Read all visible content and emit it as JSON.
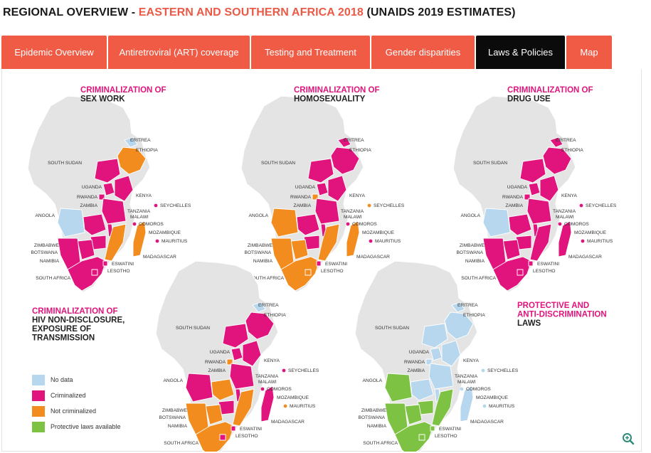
{
  "page_title": {
    "part1": "REGIONAL OVERVIEW - ",
    "part2": "EASTERN AND SOUTHERN AFRICA 2018",
    "part3": " (UNAIDS 2019 ESTIMATES)"
  },
  "tabs": [
    {
      "label": "Epidemic Overview",
      "active": false
    },
    {
      "label": "Antiretroviral (ART) coverage",
      "active": false
    },
    {
      "label": "Testing and Treatment",
      "active": false
    },
    {
      "label": "Gender disparities",
      "active": false
    },
    {
      "label": "Laws & Policies",
      "active": true
    },
    {
      "label": "Map",
      "active": false
    }
  ],
  "colors": {
    "no_data": "#b7d7ef",
    "criminalized": "#e0147c",
    "not_criminalized": "#f28c1e",
    "protective": "#7dc242",
    "land": "#e4e4e4",
    "tab": "#ef5b45",
    "tab_active": "#0b0b0b",
    "title_accent": "#ea5a47"
  },
  "maps": [
    {
      "id": "sex-work",
      "title_lines": [
        "CRIMINALIZATION OF",
        "SEX WORK"
      ],
      "labels": [
        "ERITREA",
        "ETHIOPIA",
        "SOUTH SUDAN",
        "UGANDA",
        "KENYA",
        "RWANDA",
        "SEYCHELLES",
        "ZAMBIA",
        "TANZANIA",
        "MALAWI",
        "ANGOLA",
        "COMOROS",
        "MOZAMBIQUE",
        "MAURITIUS",
        "ZIMBABWE",
        "BOTSWANA",
        "MADAGASCAR",
        "NAMIBIA",
        "ESWATINI",
        "LESOTHO",
        "SOUTH AFRICA"
      ]
    },
    {
      "id": "homosexuality",
      "title_lines": [
        "CRIMINALIZATION OF",
        "HOMOSEXUALITY"
      ],
      "labels": [
        "ERITREA",
        "ETHIOPIA",
        "SOUTH SUDAN",
        "UGANDA",
        "KENYA",
        "RWANDA",
        "SEYCHELLES",
        "ZAMBIA",
        "TANZANIA",
        "MALAWI",
        "ANGOLA",
        "COMOROS",
        "MOZAMBIQUE",
        "MAURITIUS",
        "ZIMBABWE",
        "BOTSWANA",
        "MADAGASCAR",
        "NAMIBIA",
        "ESWATINI",
        "LESOTHO",
        "SOUTH AFRICA"
      ]
    },
    {
      "id": "drug-use",
      "title_lines": [
        "CRIMINALIZATION OF",
        "DRUG USE"
      ],
      "labels": [
        "ERITREA",
        "ETHIOPIA",
        "SOUTH SUDAN",
        "UGANDA",
        "KENYA",
        "RWANDA",
        "SEYCHELLES",
        "ZAMBIA",
        "TANZANIA",
        "MALAWI",
        "ANGOLA",
        "COMOROS",
        "MOZAMBIQUE",
        "MAURITIUS",
        "ZIMBABWE",
        "BOTSWANA",
        "MADAGASCAR",
        "NAMIBIA",
        "ESWATINI",
        "LESOTHO",
        "SOUTH AFRICA"
      ]
    },
    {
      "id": "hiv-non-disclosure",
      "title_lines": [
        "CRIMINALIZATION OF",
        "HIV NON-DISCLOSURE,",
        "EXPOSURE OF",
        "TRANSMISSION"
      ],
      "labels": [
        "ERITREA",
        "ETHIOPIA",
        "SOUTH SUDAN",
        "UGANDA",
        "KENYA",
        "RWANDA",
        "SEYCHELLES",
        "ZAMBIA",
        "TANZANIA",
        "MALAWI",
        "ANGOLA",
        "COMOROS",
        "MOZAMBIQUE",
        "MAURITIUS",
        "ZIMBABWE",
        "BOTSWANA",
        "MADAGASCAR",
        "NAMIBIA",
        "ESWATINI",
        "LESOTHO",
        "SOUTH AFRICA"
      ]
    },
    {
      "id": "protective-laws",
      "title_lines": [
        "PROTECTIVE AND",
        "ANTI-DISCRIMINATION",
        "LAWS"
      ],
      "labels": [
        "ERITREA",
        "ETHIOPIA",
        "SOUTH SUDAN",
        "UGANDA",
        "KENYA",
        "RWANDA",
        "SEYCHELLES",
        "ZAMBIA",
        "TANZANIA",
        "MALAWI",
        "ANGOLA",
        "COMOROS",
        "MOZAMBIQUE",
        "MAURITIUS",
        "ZIMBABWE",
        "BOTSWANA",
        "MADAGASCAR",
        "NAMIBIA",
        "ESWATINI",
        "LESOTHO",
        "SOUTH AFRICA"
      ]
    }
  ],
  "legend": [
    {
      "label": "No data",
      "color": "#b7d7ef"
    },
    {
      "label": "Criminalized",
      "color": "#e0147c"
    },
    {
      "label": "Not criminalized",
      "color": "#f28c1e"
    },
    {
      "label": "Protective laws available",
      "color": "#7dc242"
    }
  ],
  "zoom": {
    "icon": "zoom-in-icon"
  }
}
